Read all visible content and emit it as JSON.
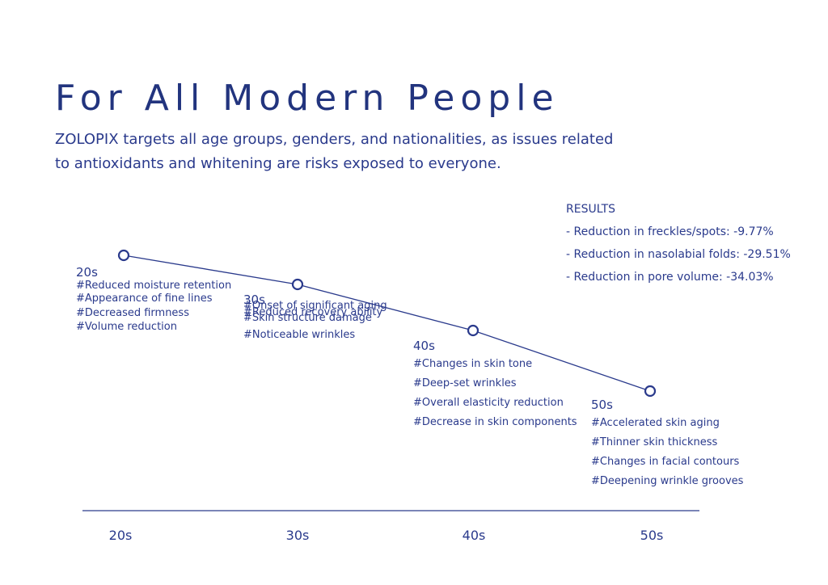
{
  "title": "For All Modern People",
  "subtitle": "ZOLOPIX targets all age groups, genders, and nationalities, as issues related to antioxidants and whitening are risks exposed to everyone.",
  "results": {
    "heading": "RESULTS",
    "items": [
      "- Reduction in freckles/spots: -9.77%",
      "- Reduction in nasolabial folds: -29.51%",
      "- Reduction in pore volume: -34.03%"
    ]
  },
  "age_groups": [
    {
      "label": "20s",
      "tags": [
        "#Reduced moisture retention",
        "#Appearance of fine lines",
        "#Decreased firmness",
        "#Volume reduction"
      ]
    },
    {
      "label": "30s",
      "tags": [
        "#Onset of significant aging",
        "#Reduced recovery ability",
        "#Skin structure damage",
        "#Noticeable wrinkles"
      ]
    },
    {
      "label": "40s",
      "tags": [
        "#Changes in skin tone",
        "#Deep-set wrinkles",
        "#Overall elasticity reduction",
        "#Decrease in skin components"
      ]
    },
    {
      "label": "50s",
      "tags": [
        "#Accelerated skin aging",
        "#Thinner skin thickness",
        "#Changes in facial contours",
        "#Deepening wrinkle grooves"
      ]
    }
  ],
  "axis_labels": [
    "20s",
    "30s",
    "40s",
    "50s"
  ],
  "colors": {
    "primary": "#2a3a8c"
  }
}
